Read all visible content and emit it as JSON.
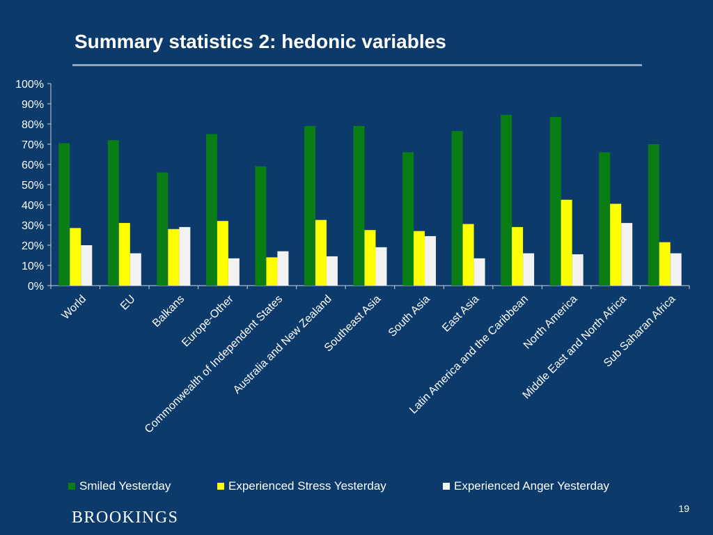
{
  "slide": {
    "title": "Summary statistics 2: hedonic variables",
    "brand": "BROOKINGS",
    "page_number": "19"
  },
  "colors": {
    "background": "#0b3a6b",
    "smiled": "#0a7d14",
    "stress": "#ffff00",
    "anger": "#f2f2f2",
    "axis": "#c8d3e0",
    "title_rule": "#8fa6c4"
  },
  "chart_data": {
    "type": "bar",
    "title": "",
    "xlabel": "",
    "ylabel": "",
    "ylim": [
      0,
      100
    ],
    "y_ticks": [
      "0%",
      "10%",
      "20%",
      "30%",
      "40%",
      "50%",
      "60%",
      "70%",
      "80%",
      "90%",
      "100%"
    ],
    "y_tick_values": [
      0,
      10,
      20,
      30,
      40,
      50,
      60,
      70,
      80,
      90,
      100
    ],
    "grid": false,
    "legend_position": "bottom",
    "categories": [
      "World",
      "EU",
      "Balkans",
      "Europe-Other",
      "Commonwealth of Independent States",
      "Australia and New Zealand",
      "Southeast Asia",
      "South Asia",
      "East Asia",
      "Latin America and the Caribbean",
      "North America",
      "Middle East and North Africa",
      "Sub Saharan Africa"
    ],
    "series": [
      {
        "name": "Smiled Yesterday",
        "color": "#0a7d14",
        "values": [
          70.5,
          72,
          56,
          75,
          59,
          79,
          79,
          66,
          76.5,
          84.5,
          83.5,
          66,
          70
        ]
      },
      {
        "name": "Experienced Stress Yesterday",
        "color": "#ffff00",
        "values": [
          28.5,
          31,
          28,
          32,
          14,
          32.5,
          27.5,
          27,
          30.5,
          29,
          42.5,
          40.5,
          21.5
        ]
      },
      {
        "name": "Experienced Anger Yesterday",
        "color": "#f2f2f2",
        "values": [
          20,
          16,
          29,
          13.5,
          17,
          14.5,
          19,
          24.5,
          13.5,
          16,
          15.5,
          31,
          16
        ]
      }
    ]
  }
}
